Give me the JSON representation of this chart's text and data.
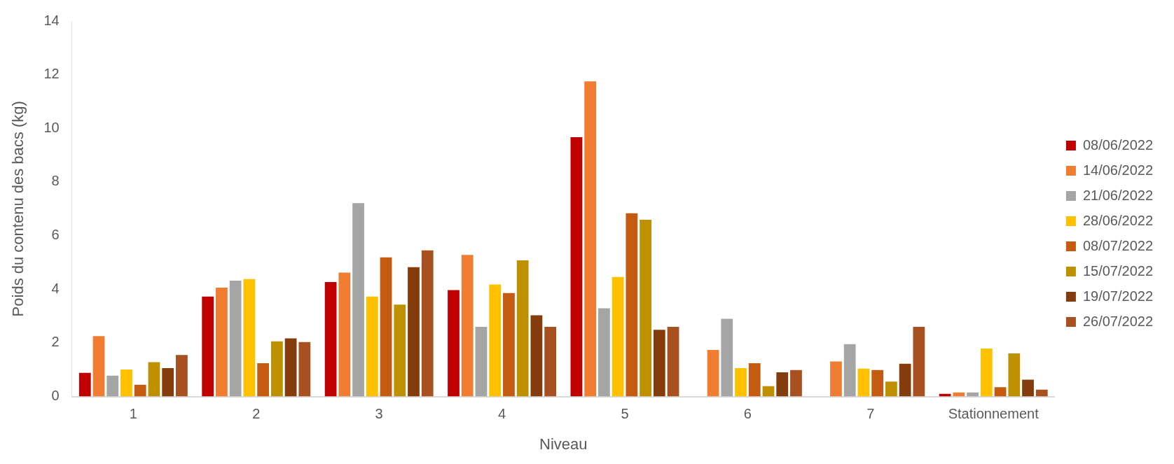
{
  "chart_data": {
    "type": "bar",
    "xlabel": "Niveau",
    "ylabel": "Poids du contenu des bacs (kg)",
    "categories": [
      "1",
      "2",
      "3",
      "4",
      "5",
      "6",
      "7",
      "Stationnement"
    ],
    "ylim": [
      0,
      14
    ],
    "yticks": [
      0,
      2,
      4,
      6,
      8,
      10,
      12,
      14
    ],
    "grid": false,
    "legend": "right",
    "series": [
      {
        "name": "08/06/2022",
        "color": "#c00000",
        "values": [
          0.88,
          3.73,
          4.27,
          3.97,
          9.67,
          null,
          null,
          0.1
        ]
      },
      {
        "name": "14/06/2022",
        "color": "#f07d32",
        "values": [
          2.25,
          4.06,
          4.62,
          5.28,
          11.75,
          1.74,
          1.31,
          0.15
        ]
      },
      {
        "name": "21/06/2022",
        "color": "#a5a5a5",
        "values": [
          0.78,
          4.32,
          7.21,
          2.6,
          3.29,
          2.9,
          1.95,
          0.15
        ]
      },
      {
        "name": "28/06/2022",
        "color": "#ffc000",
        "values": [
          1.01,
          4.38,
          3.73,
          4.18,
          4.46,
          1.06,
          1.04,
          1.79
        ]
      },
      {
        "name": "08/07/2022",
        "color": "#c55a11",
        "values": [
          0.44,
          1.24,
          5.19,
          3.86,
          6.83,
          1.24,
          0.99,
          0.35
        ]
      },
      {
        "name": "15/07/2022",
        "color": "#bf9000",
        "values": [
          1.28,
          2.06,
          3.43,
          5.08,
          6.59,
          0.39,
          0.56,
          1.61
        ]
      },
      {
        "name": "19/07/2022",
        "color": "#843c0c",
        "values": [
          1.06,
          2.17,
          4.82,
          3.03,
          2.49,
          0.9,
          1.22,
          0.63
        ]
      },
      {
        "name": "26/07/2022",
        "color": "#a8501f",
        "values": [
          1.55,
          2.03,
          5.45,
          2.6,
          2.6,
          0.99,
          2.6,
          0.26
        ]
      }
    ]
  }
}
